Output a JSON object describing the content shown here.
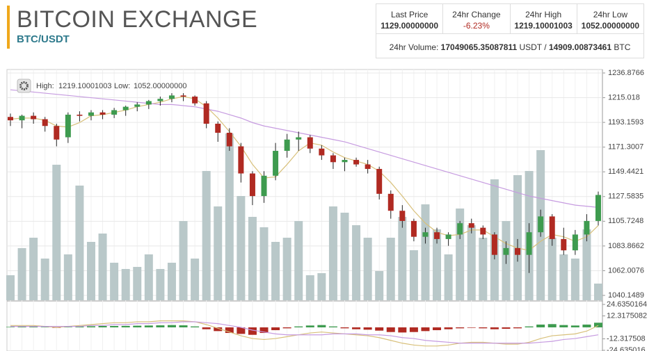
{
  "header": {
    "title": "BITCOIN EXCHANGE",
    "pair": "BTC/USDT",
    "stats": [
      {
        "label": "Last Price",
        "value": "1129.00000000"
      },
      {
        "label": "24hr Change",
        "value": "-6.23%"
      },
      {
        "label": "24hr High",
        "value": "1219.10001003"
      },
      {
        "label": "24hr Low",
        "value": "1052.00000000"
      }
    ],
    "volume": {
      "label": "24hr Volume:",
      "usdt": "17049065.35087811",
      "usdt_unit": "USDT /",
      "btc": "14909.00873461",
      "btc_unit": "BTC"
    }
  },
  "legend": {
    "high_label": "High:",
    "high": "1219.10001003",
    "low_label": "Low:",
    "low": "1052.00000000"
  },
  "chart_data": [
    {
      "type": "candlestick",
      "up_color": "#3e9b4f",
      "down_color": "#b02a22",
      "volume_color": "#b9c8c9",
      "ylim": [
        1040.1489,
        1236.8766
      ],
      "yticks": [
        1236.8766,
        1215.018,
        1193.1593,
        1171.3007,
        1149.4421,
        1127.5835,
        1105.7248,
        1083.8662,
        1062.0076,
        1040.1489
      ],
      "vlim": [
        0,
        100
      ],
      "grid": true,
      "open": [
        1198,
        1195,
        1199,
        1196,
        1190,
        1180,
        1200,
        1199,
        1202,
        1200,
        1204,
        1207,
        1209,
        1212,
        1214,
        1217,
        1216,
        1210,
        1192,
        1184,
        1172,
        1148,
        1128,
        1146,
        1168,
        1178,
        1180,
        1170,
        1164,
        1158,
        1160,
        1156,
        1152,
        1130,
        1115,
        1106,
        1092,
        1096,
        1090,
        1094,
        1104,
        1100,
        1094,
        1076,
        1082,
        1076,
        1096,
        1110,
        1090,
        1080,
        1094,
        1106
      ],
      "high": [
        1201,
        1200,
        1202,
        1198,
        1192,
        1202,
        1203,
        1204,
        1204,
        1206,
        1208,
        1211,
        1213,
        1216,
        1219,
        1219,
        1217,
        1212,
        1194,
        1188,
        1175,
        1150,
        1150,
        1175,
        1183,
        1185,
        1182,
        1173,
        1166,
        1162,
        1162,
        1160,
        1154,
        1133,
        1120,
        1108,
        1100,
        1100,
        1096,
        1106,
        1108,
        1102,
        1096,
        1088,
        1090,
        1104,
        1116,
        1112,
        1100,
        1098,
        1112,
        1132
      ],
      "low": [
        1190,
        1188,
        1192,
        1185,
        1172,
        1175,
        1194,
        1195,
        1196,
        1197,
        1199,
        1203,
        1205,
        1208,
        1211,
        1212,
        1208,
        1188,
        1176,
        1168,
        1140,
        1120,
        1122,
        1142,
        1162,
        1168,
        1166,
        1160,
        1152,
        1150,
        1154,
        1148,
        1125,
        1108,
        1100,
        1088,
        1086,
        1086,
        1084,
        1090,
        1095,
        1090,
        1072,
        1068,
        1070,
        1060,
        1092,
        1084,
        1076,
        1076,
        1088,
        1102
      ],
      "close": [
        1195,
        1199,
        1196,
        1190,
        1178,
        1200,
        1199,
        1202,
        1200,
        1204,
        1207,
        1209,
        1212,
        1214,
        1217,
        1216,
        1210,
        1192,
        1184,
        1172,
        1148,
        1128,
        1146,
        1168,
        1178,
        1180,
        1170,
        1164,
        1158,
        1160,
        1156,
        1152,
        1130,
        1115,
        1106,
        1092,
        1096,
        1090,
        1094,
        1104,
        1100,
        1094,
        1076,
        1082,
        1076,
        1096,
        1110,
        1090,
        1080,
        1094,
        1106,
        1129
      ],
      "volume": [
        12,
        25,
        30,
        20,
        65,
        22,
        55,
        28,
        32,
        18,
        15,
        16,
        22,
        15,
        18,
        38,
        20,
        62,
        45,
        80,
        50,
        40,
        35,
        28,
        30,
        38,
        12,
        13,
        45,
        42,
        36,
        30,
        14,
        30,
        40,
        24,
        46,
        34,
        22,
        44,
        36,
        30,
        58,
        38,
        60,
        62,
        72,
        30,
        22,
        20,
        34,
        8
      ],
      "series": [
        {
          "color": "#d8c07a",
          "values": [
            1196,
            1197,
            1197,
            1195,
            1190,
            1189,
            1193,
            1199,
            1200,
            1202,
            1204,
            1207,
            1209,
            1211,
            1214,
            1216,
            1214,
            1207,
            1197,
            1185,
            1172,
            1156,
            1144,
            1145,
            1156,
            1168,
            1175,
            1173,
            1167,
            1162,
            1159,
            1156,
            1150,
            1140,
            1128,
            1115,
            1104,
            1096,
            1093,
            1094,
            1098,
            1098,
            1092,
            1086,
            1082,
            1080,
            1088,
            1094,
            1092,
            1088,
            1092,
            1102
          ]
        },
        {
          "color": "#c69be0",
          "values": [
            1222,
            1221,
            1220,
            1219,
            1218,
            1217,
            1216,
            1215,
            1214,
            1213,
            1212,
            1211,
            1210,
            1209,
            1209,
            1208,
            1207,
            1205,
            1203,
            1200,
            1197,
            1193,
            1190,
            1188,
            1186,
            1184,
            1182,
            1180,
            1178,
            1176,
            1173,
            1170,
            1167,
            1164,
            1161,
            1158,
            1155,
            1152,
            1149,
            1146,
            1143,
            1140,
            1137,
            1134,
            1131,
            1128,
            1126,
            1124,
            1122,
            1120,
            1119,
            1118
          ]
        }
      ]
    },
    {
      "type": "macd",
      "up_color": "#3e9b4f",
      "down_color": "#b02a22",
      "ylim": [
        -24.635016,
        24.6350164
      ],
      "yticks": [
        24.6350164,
        12.3175082,
        -12.317508,
        -24.635016
      ],
      "histogram": [
        0.5,
        0.8,
        1,
        0.5,
        -0.5,
        0.5,
        1,
        1.2,
        1.5,
        1.5,
        1.6,
        1.8,
        2,
        2.2,
        2.5,
        2.2,
        1,
        -2,
        -4,
        -6,
        -7,
        -8,
        -6,
        -3,
        -1,
        1,
        2,
        2.5,
        1,
        -1,
        -2,
        -2.5,
        -3.5,
        -5,
        -5.5,
        -5,
        -4,
        -3,
        -2,
        -1,
        -0.5,
        -1,
        -2,
        -1.5,
        -1,
        1,
        3,
        3.5,
        2.5,
        2,
        3,
        5
      ],
      "series": [
        {
          "color": "#d8c07a",
          "values": [
            2,
            2,
            2,
            1,
            0,
            1,
            2,
            3,
            4,
            5,
            5,
            6,
            6,
            7,
            7,
            7,
            6,
            3,
            -1,
            -5,
            -9,
            -12,
            -13,
            -12,
            -10,
            -8,
            -6,
            -5,
            -6,
            -7,
            -8,
            -9,
            -11,
            -14,
            -17,
            -19,
            -20,
            -20,
            -19,
            -17,
            -16,
            -16,
            -17,
            -18,
            -18,
            -16,
            -12,
            -9,
            -8,
            -7,
            -4,
            2
          ]
        },
        {
          "color": "#c69be0",
          "values": [
            1,
            1,
            1,
            1,
            1,
            1,
            1,
            2,
            2,
            3,
            3,
            4,
            4,
            5,
            5,
            6,
            6,
            5,
            4,
            2,
            0,
            -3,
            -5,
            -7,
            -8,
            -8,
            -8,
            -8,
            -7,
            -7,
            -7,
            -8,
            -8,
            -9,
            -11,
            -12,
            -14,
            -15,
            -16,
            -17,
            -17,
            -17,
            -17,
            -17,
            -17,
            -17,
            -16,
            -15,
            -13,
            -12,
            -10,
            -8
          ]
        }
      ]
    }
  ]
}
